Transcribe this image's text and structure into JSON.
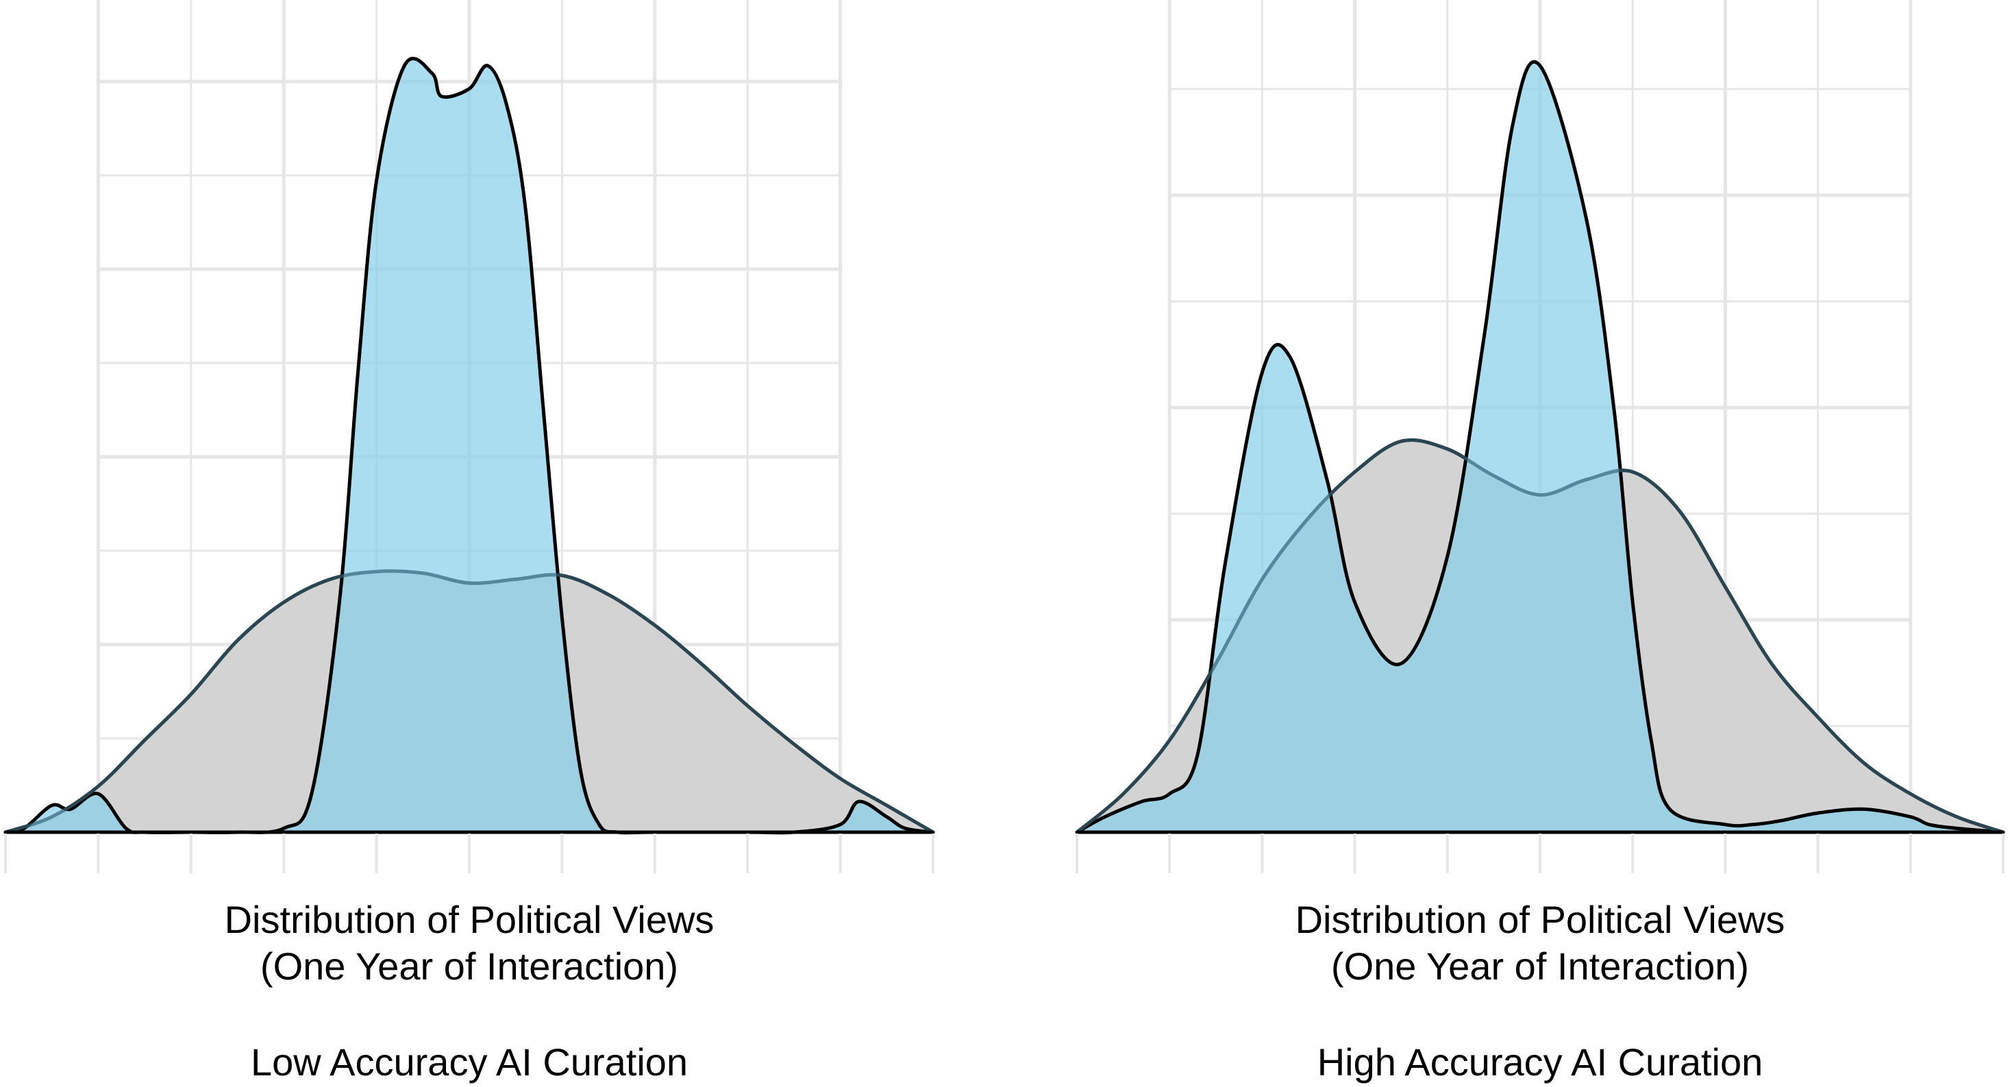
{
  "chart_data": [
    {
      "type": "area",
      "xlabel_lines": [
        "Distribution of Political Views",
        "(One Year of Interaction)"
      ],
      "subtitle": "Low Accuracy AI Curation",
      "grid": true,
      "x_axis_ticks": 10,
      "xlim": [
        0,
        1
      ],
      "ylim": [
        0,
        1.05
      ],
      "series": [
        {
          "role": "baseline",
          "color": "#d3d3d3",
          "x": [
            0,
            0.05,
            0.1,
            0.15,
            0.2,
            0.25,
            0.3,
            0.35,
            0.4,
            0.45,
            0.5,
            0.55,
            0.6,
            0.65,
            0.7,
            0.75,
            0.8,
            0.85,
            0.9,
            0.95,
            1
          ],
          "y": [
            0,
            0.02,
            0.06,
            0.12,
            0.18,
            0.25,
            0.3,
            0.33,
            0.34,
            0.338,
            0.325,
            0.33,
            0.335,
            0.31,
            0.27,
            0.22,
            0.165,
            0.115,
            0.07,
            0.035,
            0
          ]
        },
        {
          "role": "after",
          "color": "#87ceeb",
          "x": [
            0,
            0.02,
            0.05,
            0.07,
            0.1,
            0.13,
            0.15,
            0.2,
            0.25,
            0.3,
            0.33,
            0.36,
            0.38,
            0.4,
            0.43,
            0.46,
            0.47,
            0.5,
            0.52,
            0.54,
            0.56,
            0.58,
            0.6,
            0.62,
            0.64,
            0.66,
            0.7,
            0.8,
            0.85,
            0.9,
            0.92,
            0.95,
            0.97,
            1
          ],
          "y": [
            0,
            0.005,
            0.035,
            0.03,
            0.05,
            0.005,
            0,
            0,
            0,
            0.005,
            0.05,
            0.3,
            0.6,
            0.85,
            1.0,
            0.99,
            0.96,
            0.97,
            1.0,
            0.95,
            0.82,
            0.55,
            0.28,
            0.08,
            0.01,
            0,
            0,
            0,
            0,
            0.01,
            0.04,
            0.02,
            0.005,
            0
          ]
        }
      ]
    },
    {
      "type": "area",
      "xlabel_lines": [
        "Distribution of Political Views",
        "(One Year of Interaction)"
      ],
      "subtitle": "High Accuracy AI Curation",
      "grid": true,
      "x_axis_ticks": 10,
      "xlim": [
        0,
        1
      ],
      "ylim": [
        0,
        1.05
      ],
      "series": [
        {
          "role": "baseline",
          "color": "#d3d3d3",
          "x": [
            0,
            0.05,
            0.1,
            0.15,
            0.2,
            0.25,
            0.3,
            0.35,
            0.4,
            0.45,
            0.5,
            0.55,
            0.6,
            0.65,
            0.7,
            0.75,
            0.8,
            0.85,
            0.9,
            0.95,
            1
          ],
          "y": [
            0,
            0.05,
            0.12,
            0.22,
            0.33,
            0.41,
            0.47,
            0.51,
            0.5,
            0.465,
            0.44,
            0.46,
            0.47,
            0.42,
            0.32,
            0.22,
            0.15,
            0.09,
            0.05,
            0.02,
            0
          ]
        },
        {
          "role": "after",
          "color": "#87ceeb",
          "x": [
            0,
            0.03,
            0.07,
            0.1,
            0.13,
            0.16,
            0.2,
            0.23,
            0.27,
            0.3,
            0.35,
            0.4,
            0.44,
            0.47,
            0.5,
            0.55,
            0.58,
            0.6,
            0.62,
            0.64,
            0.7,
            0.73,
            0.76,
            0.8,
            0.85,
            0.9,
            0.92,
            0.95,
            1
          ],
          "y": [
            0,
            0.02,
            0.04,
            0.05,
            0.1,
            0.35,
            0.6,
            0.62,
            0.46,
            0.3,
            0.22,
            0.36,
            0.65,
            0.92,
            1.0,
            0.8,
            0.55,
            0.3,
            0.12,
            0.03,
            0.01,
            0.01,
            0.015,
            0.025,
            0.03,
            0.02,
            0.01,
            0.005,
            0
          ]
        }
      ]
    }
  ]
}
